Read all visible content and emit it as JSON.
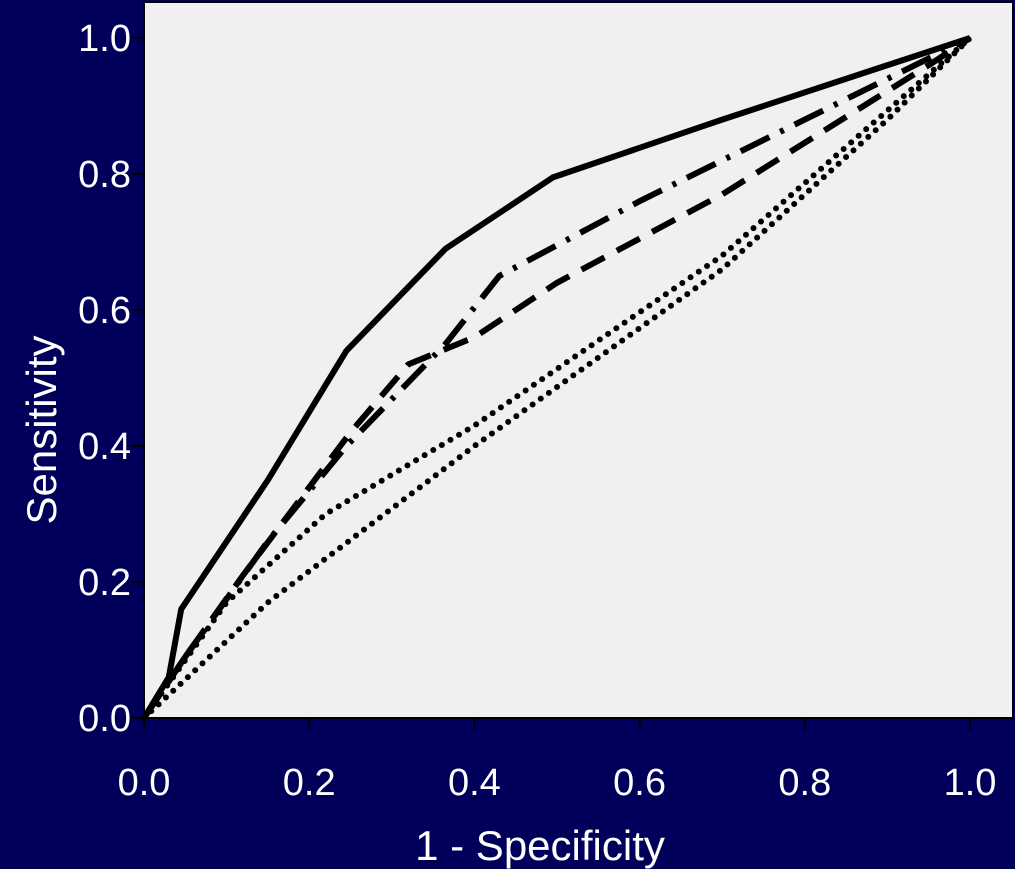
{
  "chart_data": {
    "type": "line",
    "title": "",
    "xlabel": "1 - Specificity",
    "ylabel": "Sensitivity",
    "xlim": [
      0,
      1
    ],
    "ylim": [
      0,
      1
    ],
    "x_ticks": [
      "0.0",
      "0.2",
      "0.4",
      "0.6",
      "0.8",
      "1.0"
    ],
    "y_ticks": [
      "0.0",
      "0.2",
      "0.4",
      "0.6",
      "0.8",
      "1.0"
    ],
    "grid": false,
    "legend": "none",
    "colors": {
      "background": "#00005a",
      "plot_area": "#f0f0f0",
      "line": "#000000",
      "text": "#ffffff"
    },
    "series": [
      {
        "style": "solid",
        "points": [
          [
            0,
            0
          ],
          [
            0.03,
            0.06
          ],
          [
            0.045,
            0.16
          ],
          [
            0.15,
            0.35
          ],
          [
            0.245,
            0.54
          ],
          [
            0.365,
            0.69
          ],
          [
            0.495,
            0.795
          ],
          [
            0.7,
            0.88
          ],
          [
            0.95,
            0.98
          ],
          [
            1,
            1
          ]
        ]
      },
      {
        "style": "dash-dot",
        "points": [
          [
            0,
            0
          ],
          [
            0.05,
            0.09
          ],
          [
            0.15,
            0.26
          ],
          [
            0.245,
            0.4
          ],
          [
            0.365,
            0.55
          ],
          [
            0.43,
            0.65
          ],
          [
            0.6,
            0.76
          ],
          [
            0.8,
            0.88
          ],
          [
            0.95,
            0.97
          ],
          [
            1,
            1
          ]
        ]
      },
      {
        "style": "dashed",
        "points": [
          [
            0,
            0
          ],
          [
            0.05,
            0.09
          ],
          [
            0.12,
            0.21
          ],
          [
            0.25,
            0.42
          ],
          [
            0.32,
            0.52
          ],
          [
            0.4,
            0.56
          ],
          [
            0.5,
            0.64
          ],
          [
            0.7,
            0.77
          ],
          [
            0.95,
            0.96
          ],
          [
            1,
            1
          ]
        ]
      },
      {
        "style": "dotted",
        "points": [
          [
            0,
            0
          ],
          [
            0.1,
            0.17
          ],
          [
            0.22,
            0.3
          ],
          [
            0.4,
            0.43
          ],
          [
            0.7,
            0.68
          ],
          [
            1,
            1
          ]
        ]
      },
      {
        "style": "dotted",
        "points": [
          [
            0,
            0
          ],
          [
            0.15,
            0.17
          ],
          [
            0.4,
            0.4
          ],
          [
            0.7,
            0.66
          ],
          [
            0.9,
            0.88
          ],
          [
            1,
            1
          ]
        ]
      }
    ]
  }
}
